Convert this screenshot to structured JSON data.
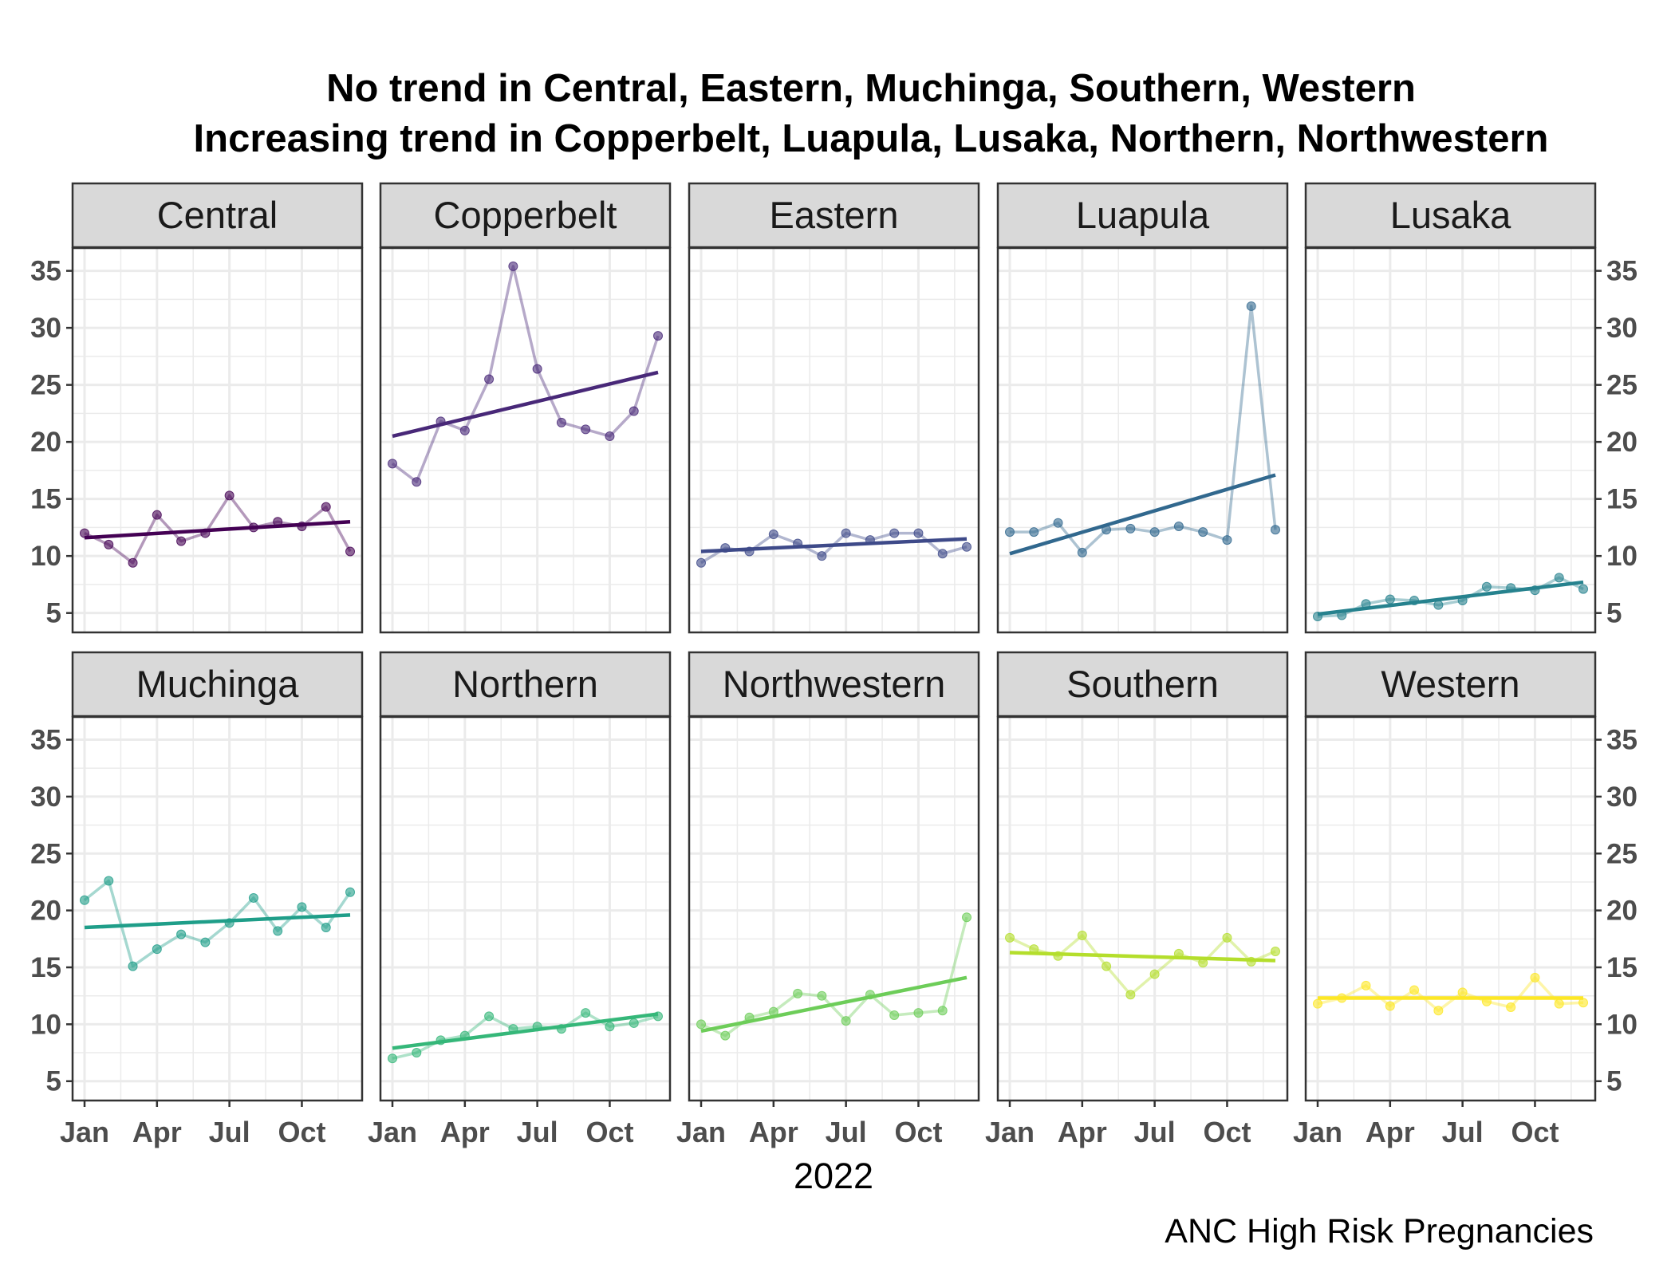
{
  "chart_data": {
    "type": "line",
    "title": "No trend in Central, Eastern, Muchinga, Southern, Western",
    "subtitle": "Increasing trend in Copperbelt, Luapula, Lusaka, Northern, Northwestern",
    "xlabel": "2022",
    "ylabel": "",
    "caption": "ANC High Risk Pregnancies",
    "x": [
      "Jan",
      "Feb",
      "Mar",
      "Apr",
      "May",
      "Jun",
      "Jul",
      "Aug",
      "Sep",
      "Oct",
      "Nov",
      "Dec"
    ],
    "x_ticks": [
      "Jan",
      "Apr",
      "Jul",
      "Oct"
    ],
    "y_ticks": [
      5,
      10,
      15,
      20,
      25,
      30,
      35
    ],
    "ylim": [
      3.3,
      37.0
    ],
    "grid": true,
    "legend": "none",
    "series": [
      {
        "name": "Central",
        "color": "#440154",
        "values": [
          12.0,
          11.0,
          9.4,
          13.6,
          11.3,
          12.0,
          15.3,
          12.5,
          13.0,
          12.6,
          14.3,
          10.4
        ],
        "trend": [
          11.6,
          13.0
        ]
      },
      {
        "name": "Copperbelt",
        "color": "#482878",
        "values": [
          18.1,
          16.5,
          21.8,
          21.0,
          25.5,
          35.4,
          26.4,
          21.7,
          21.1,
          20.5,
          22.7,
          29.3
        ],
        "trend": [
          20.5,
          26.1
        ]
      },
      {
        "name": "Eastern",
        "color": "#3E4A89",
        "values": [
          9.4,
          10.7,
          10.4,
          11.9,
          11.1,
          10.0,
          12.0,
          11.4,
          12.0,
          12.0,
          10.2,
          10.8
        ],
        "trend": [
          10.4,
          11.5
        ]
      },
      {
        "name": "Luapula",
        "color": "#31688E",
        "values": [
          12.1,
          12.1,
          12.9,
          10.3,
          12.3,
          12.4,
          12.1,
          12.6,
          12.1,
          11.4,
          31.9,
          12.3
        ],
        "trend": [
          10.2,
          17.1
        ]
      },
      {
        "name": "Lusaka",
        "color": "#26828E",
        "values": [
          4.7,
          4.8,
          5.8,
          6.2,
          6.1,
          5.7,
          6.1,
          7.3,
          7.2,
          7.0,
          8.1,
          7.1
        ],
        "trend": [
          4.9,
          7.7
        ]
      },
      {
        "name": "Muchinga",
        "color": "#1F9E89",
        "values": [
          20.9,
          22.6,
          15.1,
          16.6,
          17.9,
          17.2,
          18.9,
          21.1,
          18.2,
          20.3,
          18.5,
          21.6
        ],
        "trend": [
          18.5,
          19.6
        ]
      },
      {
        "name": "Northern",
        "color": "#35B779",
        "values": [
          7.0,
          7.5,
          8.6,
          9.0,
          10.7,
          9.6,
          9.8,
          9.6,
          11.0,
          9.8,
          10.1,
          10.7
        ],
        "trend": [
          7.9,
          10.9
        ]
      },
      {
        "name": "Northwestern",
        "color": "#6DCD59",
        "values": [
          10.0,
          9.0,
          10.6,
          11.1,
          12.7,
          12.5,
          10.3,
          12.6,
          10.8,
          11.0,
          11.2,
          19.4
        ],
        "trend": [
          9.4,
          14.1
        ]
      },
      {
        "name": "Southern",
        "color": "#B4DE2C",
        "values": [
          17.6,
          16.6,
          16.0,
          17.8,
          15.1,
          12.6,
          14.4,
          16.2,
          15.4,
          17.6,
          15.5,
          16.4
        ],
        "trend": [
          16.3,
          15.6
        ]
      },
      {
        "name": "Western",
        "color": "#FDE725",
        "values": [
          11.8,
          12.3,
          13.4,
          11.6,
          13.0,
          11.2,
          12.8,
          12.0,
          11.5,
          14.1,
          11.8,
          11.9
        ],
        "trend": [
          12.3,
          12.3
        ]
      }
    ]
  }
}
